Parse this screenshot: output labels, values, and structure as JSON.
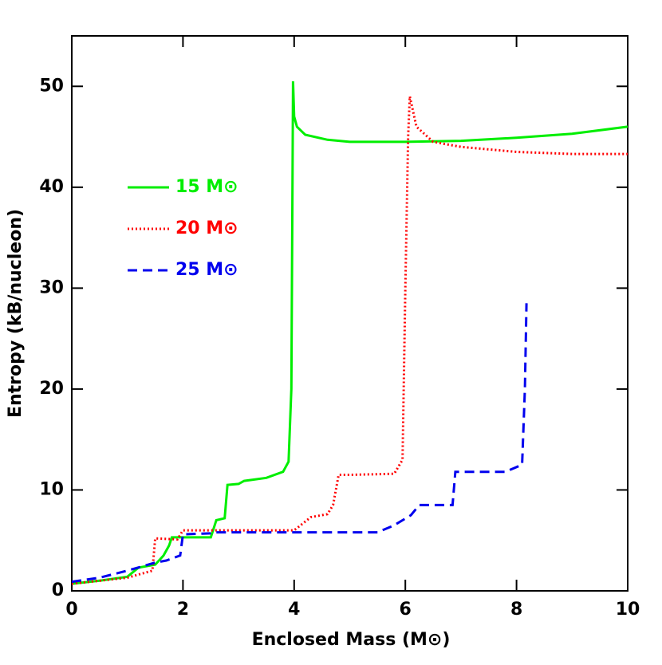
{
  "chart_data": {
    "type": "line",
    "xlabel": "Enclosed Mass (M⊙)",
    "ylabel": "Entropy (kB/nucleon)",
    "xlim": [
      0,
      10
    ],
    "ylim": [
      0,
      55
    ],
    "xticks": [
      0,
      2,
      4,
      6,
      8,
      10
    ],
    "yticks": [
      0,
      10,
      20,
      30,
      40,
      50
    ],
    "legend": "upper left",
    "series": [
      {
        "name": "15 M⊙",
        "color": "#00ee00",
        "dash": "solid",
        "x": [
          0,
          0.5,
          1.0,
          1.2,
          1.5,
          1.65,
          1.75,
          1.8,
          2.5,
          2.6,
          2.75,
          2.8,
          3.0,
          3.1,
          3.5,
          3.8,
          3.9,
          3.95,
          3.97,
          3.98,
          4.0,
          4.05,
          4.2,
          4.6,
          5,
          6,
          7,
          8,
          9,
          10
        ],
        "values": [
          0.7,
          1.0,
          1.4,
          2.3,
          2.6,
          3.5,
          4.5,
          5.3,
          5.3,
          7.0,
          7.2,
          10.5,
          10.6,
          10.9,
          11.2,
          11.8,
          12.8,
          20,
          40,
          50.5,
          47,
          46,
          45.2,
          44.7,
          44.5,
          44.5,
          44.6,
          44.9,
          45.3,
          46.0
        ]
      },
      {
        "name": "20 M⊙",
        "color": "#ff0000",
        "dash": "dotted",
        "x": [
          0,
          1,
          1.45,
          1.5,
          1.9,
          2.0,
          4.0,
          4.3,
          4.6,
          4.7,
          4.8,
          5.0,
          5.8,
          5.95,
          6.0,
          6.05,
          6.08,
          6.2,
          6.5,
          7,
          8,
          9,
          10
        ],
        "values": [
          0.7,
          1.3,
          2.0,
          5.2,
          5.1,
          6.0,
          6.0,
          7.3,
          7.6,
          8.5,
          11.5,
          11.5,
          11.6,
          13,
          30,
          45,
          49,
          46,
          44.5,
          44,
          43.5,
          43.3,
          43.3
        ]
      },
      {
        "name": "25 M⊙",
        "color": "#0000ee",
        "dash": "dashed",
        "x": [
          0,
          0.5,
          1.0,
          1.5,
          1.7,
          1.95,
          2.0,
          2.5,
          2.6,
          5.5,
          5.8,
          6.1,
          6.25,
          6.85,
          6.9,
          7.8,
          8.1,
          8.15,
          8.18
        ],
        "values": [
          0.9,
          1.3,
          2.0,
          2.8,
          3.0,
          3.5,
          5.6,
          5.7,
          5.8,
          5.8,
          6.5,
          7.5,
          8.5,
          8.5,
          11.8,
          11.8,
          12.5,
          20,
          28.5
        ]
      }
    ]
  }
}
